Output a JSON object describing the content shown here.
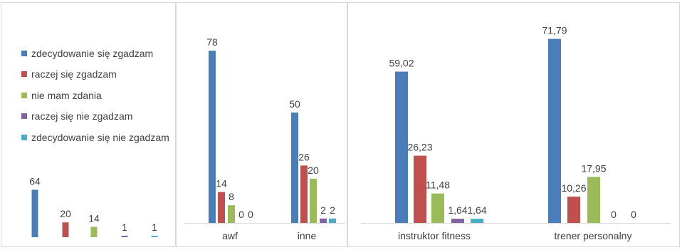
{
  "legend": {
    "items": [
      {
        "label": "zdecydowanie się zgadzam",
        "color": "#4a7ebb"
      },
      {
        "label": "raczej się zgadzam",
        "color": "#c0504d"
      },
      {
        "label": "nie mam zdania",
        "color": "#9bbb59"
      },
      {
        "label": "raczej się nie zgadzam",
        "color": "#8064a2"
      },
      {
        "label": "zdecydowanie się nie zgadzam",
        "color": "#4bacc6"
      }
    ]
  },
  "chart_data": [
    {
      "type": "bar",
      "categories": [
        ""
      ],
      "series": [
        {
          "name": "zdecydowanie się zgadzam",
          "values": [
            64
          ],
          "labels": [
            "64"
          ]
        },
        {
          "name": "raczej się zgadzam",
          "values": [
            20
          ],
          "labels": [
            "20"
          ]
        },
        {
          "name": "nie mam zdania",
          "values": [
            14
          ],
          "labels": [
            "14"
          ]
        },
        {
          "name": "raczej się nie zgadzam",
          "values": [
            1
          ],
          "labels": [
            "1"
          ]
        },
        {
          "name": "zdecydowanie się nie zgadzam",
          "values": [
            1
          ],
          "labels": [
            "1"
          ]
        }
      ],
      "grid": false
    },
    {
      "type": "bar",
      "categories": [
        "awf",
        "inne"
      ],
      "series": [
        {
          "name": "zdecydowanie się zgadzam",
          "values": [
            78,
            50
          ],
          "labels": [
            "78",
            "50"
          ]
        },
        {
          "name": "raczej się zgadzam",
          "values": [
            14,
            26
          ],
          "labels": [
            "14",
            "26"
          ]
        },
        {
          "name": "nie mam zdania",
          "values": [
            8,
            20
          ],
          "labels": [
            "8",
            "20"
          ]
        },
        {
          "name": "raczej się nie zgadzam",
          "values": [
            0,
            2
          ],
          "labels": [
            "0",
            "2"
          ]
        },
        {
          "name": "zdecydowanie się nie zgadzam",
          "values": [
            0,
            2
          ],
          "labels": [
            "0",
            "2"
          ]
        }
      ],
      "grid": false
    },
    {
      "type": "bar",
      "categories": [
        "instruktor fitness",
        "trener personalny"
      ],
      "series": [
        {
          "name": "zdecydowanie się zgadzam",
          "values": [
            59.02,
            71.79
          ],
          "labels": [
            "59,02",
            "71,79"
          ]
        },
        {
          "name": "raczej się zgadzam",
          "values": [
            26.23,
            10.26
          ],
          "labels": [
            "26,23",
            "10,26"
          ]
        },
        {
          "name": "nie mam zdania",
          "values": [
            11.48,
            17.95
          ],
          "labels": [
            "11,48",
            "17,95"
          ]
        },
        {
          "name": "raczej się nie zgadzam",
          "values": [
            1.64,
            0
          ],
          "labels": [
            "1,64",
            "0"
          ]
        },
        {
          "name": "zdecydowanie się nie zgadzam",
          "values": [
            1.64,
            0
          ],
          "labels": [
            "1,64",
            "0"
          ]
        }
      ],
      "grid": false
    }
  ]
}
